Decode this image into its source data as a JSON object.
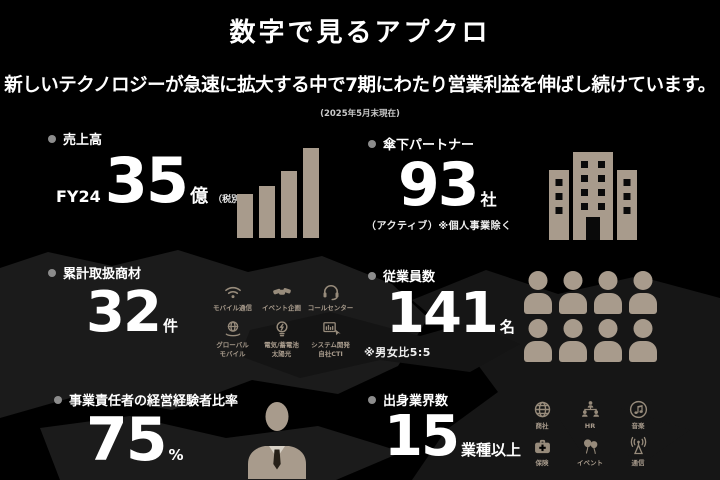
{
  "page": {
    "title": "数字で見るアプクロ",
    "subtitle": "新しいテクノロジーが急速に拡大する中で7期にわたり営業利益を伸ばし続けています。",
    "as_of": "(2025年5月末現在)"
  },
  "colors": {
    "bg": "#000000",
    "map": "#1b1b1b",
    "map2": "#141414",
    "tan": "#a89b8c",
    "tan-dim": "#978b7b",
    "bullet": "#8c8c8c",
    "white": "#ffffff",
    "shirt": "#d8d1c6",
    "window": "#0a0a0a"
  },
  "blocks": {
    "revenue": {
      "label": "売上高",
      "prefix": "FY24",
      "value": "35",
      "unit": "億",
      "note": "（税別）"
    },
    "partners": {
      "label": "傘下パートナー",
      "value": "93",
      "unit": "社",
      "note": "（アクティブ）※個人事業除く"
    },
    "products": {
      "label": "累計取扱商材",
      "value": "32",
      "unit": "件",
      "items": [
        {
          "icon": "wifi-icon",
          "label": "モバイル通信"
        },
        {
          "icon": "handshake-icon",
          "label": "イベント企画"
        },
        {
          "icon": "headset-icon",
          "label": "コールセンター"
        },
        {
          "icon": "globe-hand-icon",
          "label": "グローバル\nモバイル"
        },
        {
          "icon": "lightbulb-icon",
          "label": "電気/蓄電池\n太陽光"
        },
        {
          "icon": "system-icon",
          "label": "システム開発\n自社CTI"
        }
      ]
    },
    "employees": {
      "label": "従業員数",
      "value": "141",
      "unit": "名",
      "note": "※男女比5:5",
      "headcount_shown": 8
    },
    "managers": {
      "label": "事業責任者の経営経験者比率",
      "value": "75",
      "unit": "%"
    },
    "industries": {
      "label": "出身業界数",
      "value": "15",
      "unit": "業種以上",
      "items": [
        {
          "icon": "globe-icon",
          "label": "商社"
        },
        {
          "icon": "org-chart-icon",
          "label": "HR"
        },
        {
          "icon": "music-note-icon",
          "label": "音楽"
        },
        {
          "icon": "first-aid-icon",
          "label": "保険"
        },
        {
          "icon": "balloons-icon",
          "label": "イベント"
        },
        {
          "icon": "antenna-icon",
          "label": "通信"
        }
      ]
    }
  },
  "chart_data": {
    "type": "bar",
    "categories": [
      "",
      "",
      "",
      ""
    ],
    "values": [
      49,
      58,
      74,
      100
    ],
    "title": "売上高 FY24 35億（税別）",
    "xlabel": "",
    "ylabel": "",
    "ylim": [
      0,
      100
    ],
    "legend": false,
    "grid": false,
    "bar_color": "#a89b8c"
  }
}
